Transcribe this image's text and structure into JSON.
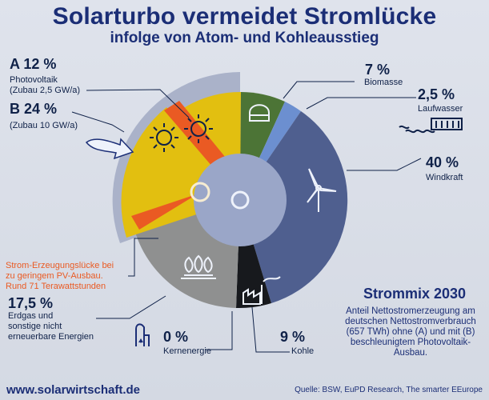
{
  "title": "Solarturbo vermeidet Stromlücke",
  "subtitle": "infolge von Atom- und Kohleausstieg",
  "labels": {
    "a_value": "A 12 %",
    "a_desc_1": "Photovoltaik",
    "a_desc_2": "(Zubau 2,5 GW/a)",
    "b_value": "B 24 %",
    "b_desc": "(Zubau 10 GW/a)",
    "biomass_value": "7 %",
    "biomass_label": "Biomasse",
    "run_value": "2,5 %",
    "run_label": "Laufwasser",
    "wind_value": "40 %",
    "wind_label": "Windkraft",
    "gap_1": "Strom-Erzeugungslücke bei",
    "gap_2": "zu geringem PV-Ausbau.",
    "gap_3": "Rund 71 Terawattstunden",
    "gas_value": "17,5 %",
    "gas_desc_1": "Erdgas und",
    "gas_desc_2": "sonstige nicht",
    "gas_desc_3": "erneuerbare Energien",
    "nuclear_value": "0 %",
    "nuclear_label": "Kernenergie",
    "coal_value": "9 %",
    "coal_label": "Kohle",
    "mix_title": "Strommix 2030",
    "mix_1": "Anteil Nettostromerzeugung am",
    "mix_2": "deutschen Nettostromverbrauch",
    "mix_3": "(657 TWh) ohne (A) und mit (B)",
    "mix_4": "beschleunigtem Photovoltaik-",
    "mix_5": "Ausbau."
  },
  "footer": {
    "website": "www.solarwirtschaft.de",
    "source": "Quelle: BSW, EuPD Research, The smarter EEurope"
  },
  "colors": {
    "title": "#1b2e76",
    "solar": "#e2bf10",
    "solar_outline": "#aab2c9",
    "gap": "#ea5a23",
    "biomass": "#4c7436",
    "run_water": "#6c8fd0",
    "wind": "#4f5f8f",
    "coal": "#17191d",
    "gas": "#8f9090",
    "center": "#9aa6c8",
    "center_ring": "#dfe4f2"
  },
  "icons": [
    "sun-icon",
    "biomass-icon",
    "water-icon",
    "wind-turbine-icon",
    "gas-flame-icon",
    "factory-icon",
    "radioactive-icon",
    "arrow-icon"
  ],
  "chart_data": {
    "type": "pie",
    "title": "Solarturbo vermeidet Stromlücke",
    "subtitle": "infolge von Atom- und Kohleausstieg",
    "categories": [
      "Photovoltaik A",
      "Photovoltaik B",
      "Biomasse",
      "Laufwasser",
      "Windkraft",
      "Kohle",
      "Kernenergie",
      "Erdgas und sonstige nicht erneuerbare Energien",
      "Strom-Erzeugungslücke bei zu geringem PV-Ausbau"
    ],
    "values": [
      12,
      24,
      7,
      2.5,
      40,
      9,
      0,
      17.5,
      71
    ],
    "units": [
      "%",
      "%",
      "%",
      "%",
      "%",
      "%",
      "%",
      "%",
      "TWh"
    ],
    "legend": "none"
  }
}
